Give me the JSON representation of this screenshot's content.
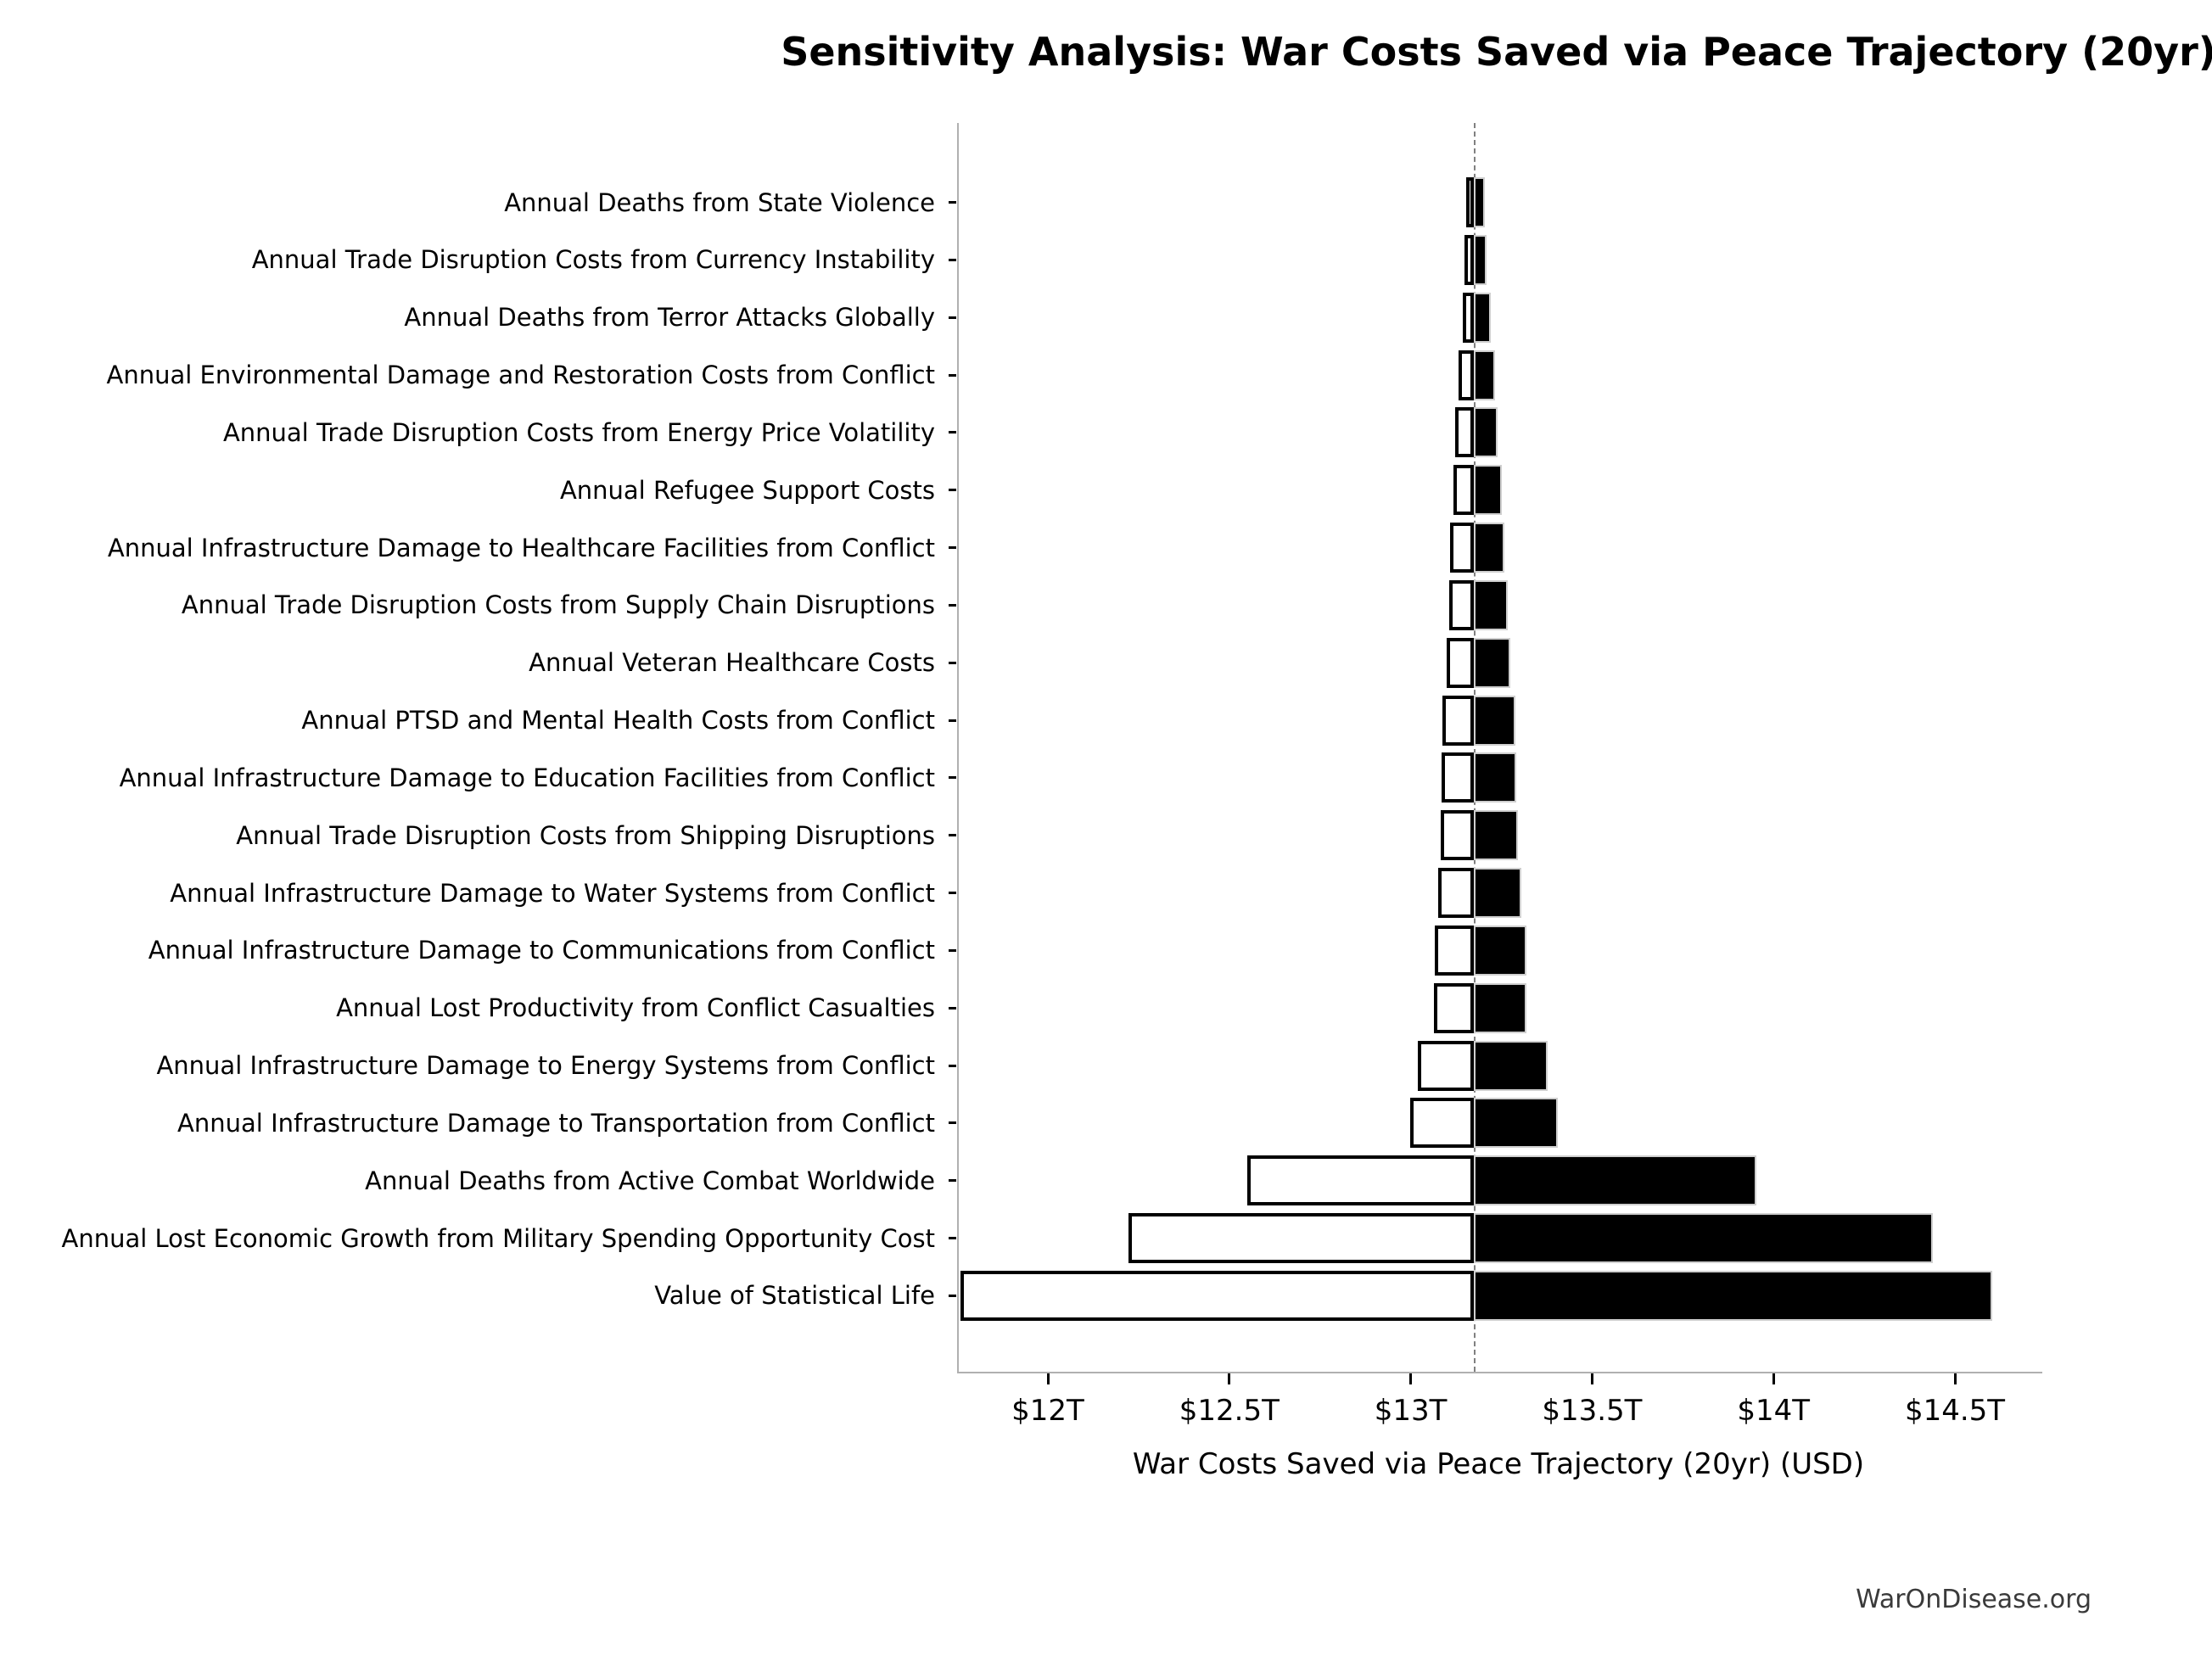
{
  "title": "Sensitivity Analysis: War Costs Saved via Peace Trajectory (20yr)",
  "footer": "WarOnDisease.org",
  "chart_data": {
    "type": "bar",
    "variant": "tornado",
    "orientation": "horizontal",
    "title": "Sensitivity Analysis: War Costs Saved via Peace Trajectory (20yr)",
    "xlabel": "War Costs Saved via Peace Trajectory (20yr) (USD)",
    "ylabel": "",
    "unit": "trillion USD",
    "grid": false,
    "legend": null,
    "baseline": 13.174,
    "xlim": [
      11.75,
      14.75
    ],
    "x_ticks": [
      {
        "value": 12.0,
        "label": "$12T"
      },
      {
        "value": 12.5,
        "label": "$12.5T"
      },
      {
        "value": 13.0,
        "label": "$13T"
      },
      {
        "value": 13.5,
        "label": "$13.5T"
      },
      {
        "value": 14.0,
        "label": "$14T"
      },
      {
        "value": 14.5,
        "label": "$14.5T"
      }
    ],
    "categories": [
      "Annual Deaths from State Violence",
      "Annual Trade Disruption Costs from Currency Instability",
      "Annual Deaths from Terror Attacks Globally",
      "Annual Environmental Damage and Restoration Costs from Conflict",
      "Annual Trade Disruption Costs from Energy Price Volatility",
      "Annual Refugee Support Costs",
      "Annual Infrastructure Damage to Healthcare Facilities from Conflict",
      "Annual Trade Disruption Costs from Supply Chain Disruptions",
      "Annual Veteran Healthcare Costs",
      "Annual PTSD and Mental Health Costs from Conflict",
      "Annual Infrastructure Damage to Education Facilities from Conflict",
      "Annual Trade Disruption Costs from Shipping Disruptions",
      "Annual Infrastructure Damage to Water Systems from Conflict",
      "Annual Infrastructure Damage to Communications from Conflict",
      "Annual Lost Productivity from Conflict Casualties",
      "Annual Infrastructure Damage to Energy Systems from Conflict",
      "Annual Infrastructure Damage to Transportation from Conflict",
      "Annual Deaths from Active Combat Worldwide",
      "Annual Lost Economic Growth from Military Spending Opportunity Cost",
      "Value of Statistical Life"
    ],
    "series": [
      {
        "name": "low",
        "values": [
          13.153,
          13.148,
          13.143,
          13.132,
          13.123,
          13.118,
          13.109,
          13.106,
          13.098,
          13.088,
          13.086,
          13.083,
          13.075,
          13.067,
          13.065,
          13.02,
          12.999,
          12.55,
          12.223,
          11.759
        ]
      },
      {
        "name": "high",
        "values": [
          13.204,
          13.208,
          13.221,
          13.233,
          13.24,
          13.251,
          13.258,
          13.267,
          13.274,
          13.289,
          13.291,
          13.296,
          13.304,
          13.32,
          13.32,
          13.377,
          13.406,
          13.953,
          14.439,
          14.602
        ]
      }
    ],
    "colors": {
      "low_fill": "#ffffff",
      "high_fill": "#000000",
      "bar_edge": "#000000",
      "baseline_line": "#808080",
      "spine": "#b0b0b0",
      "text": "#000000",
      "footer_text": "#3a3a3a"
    }
  }
}
